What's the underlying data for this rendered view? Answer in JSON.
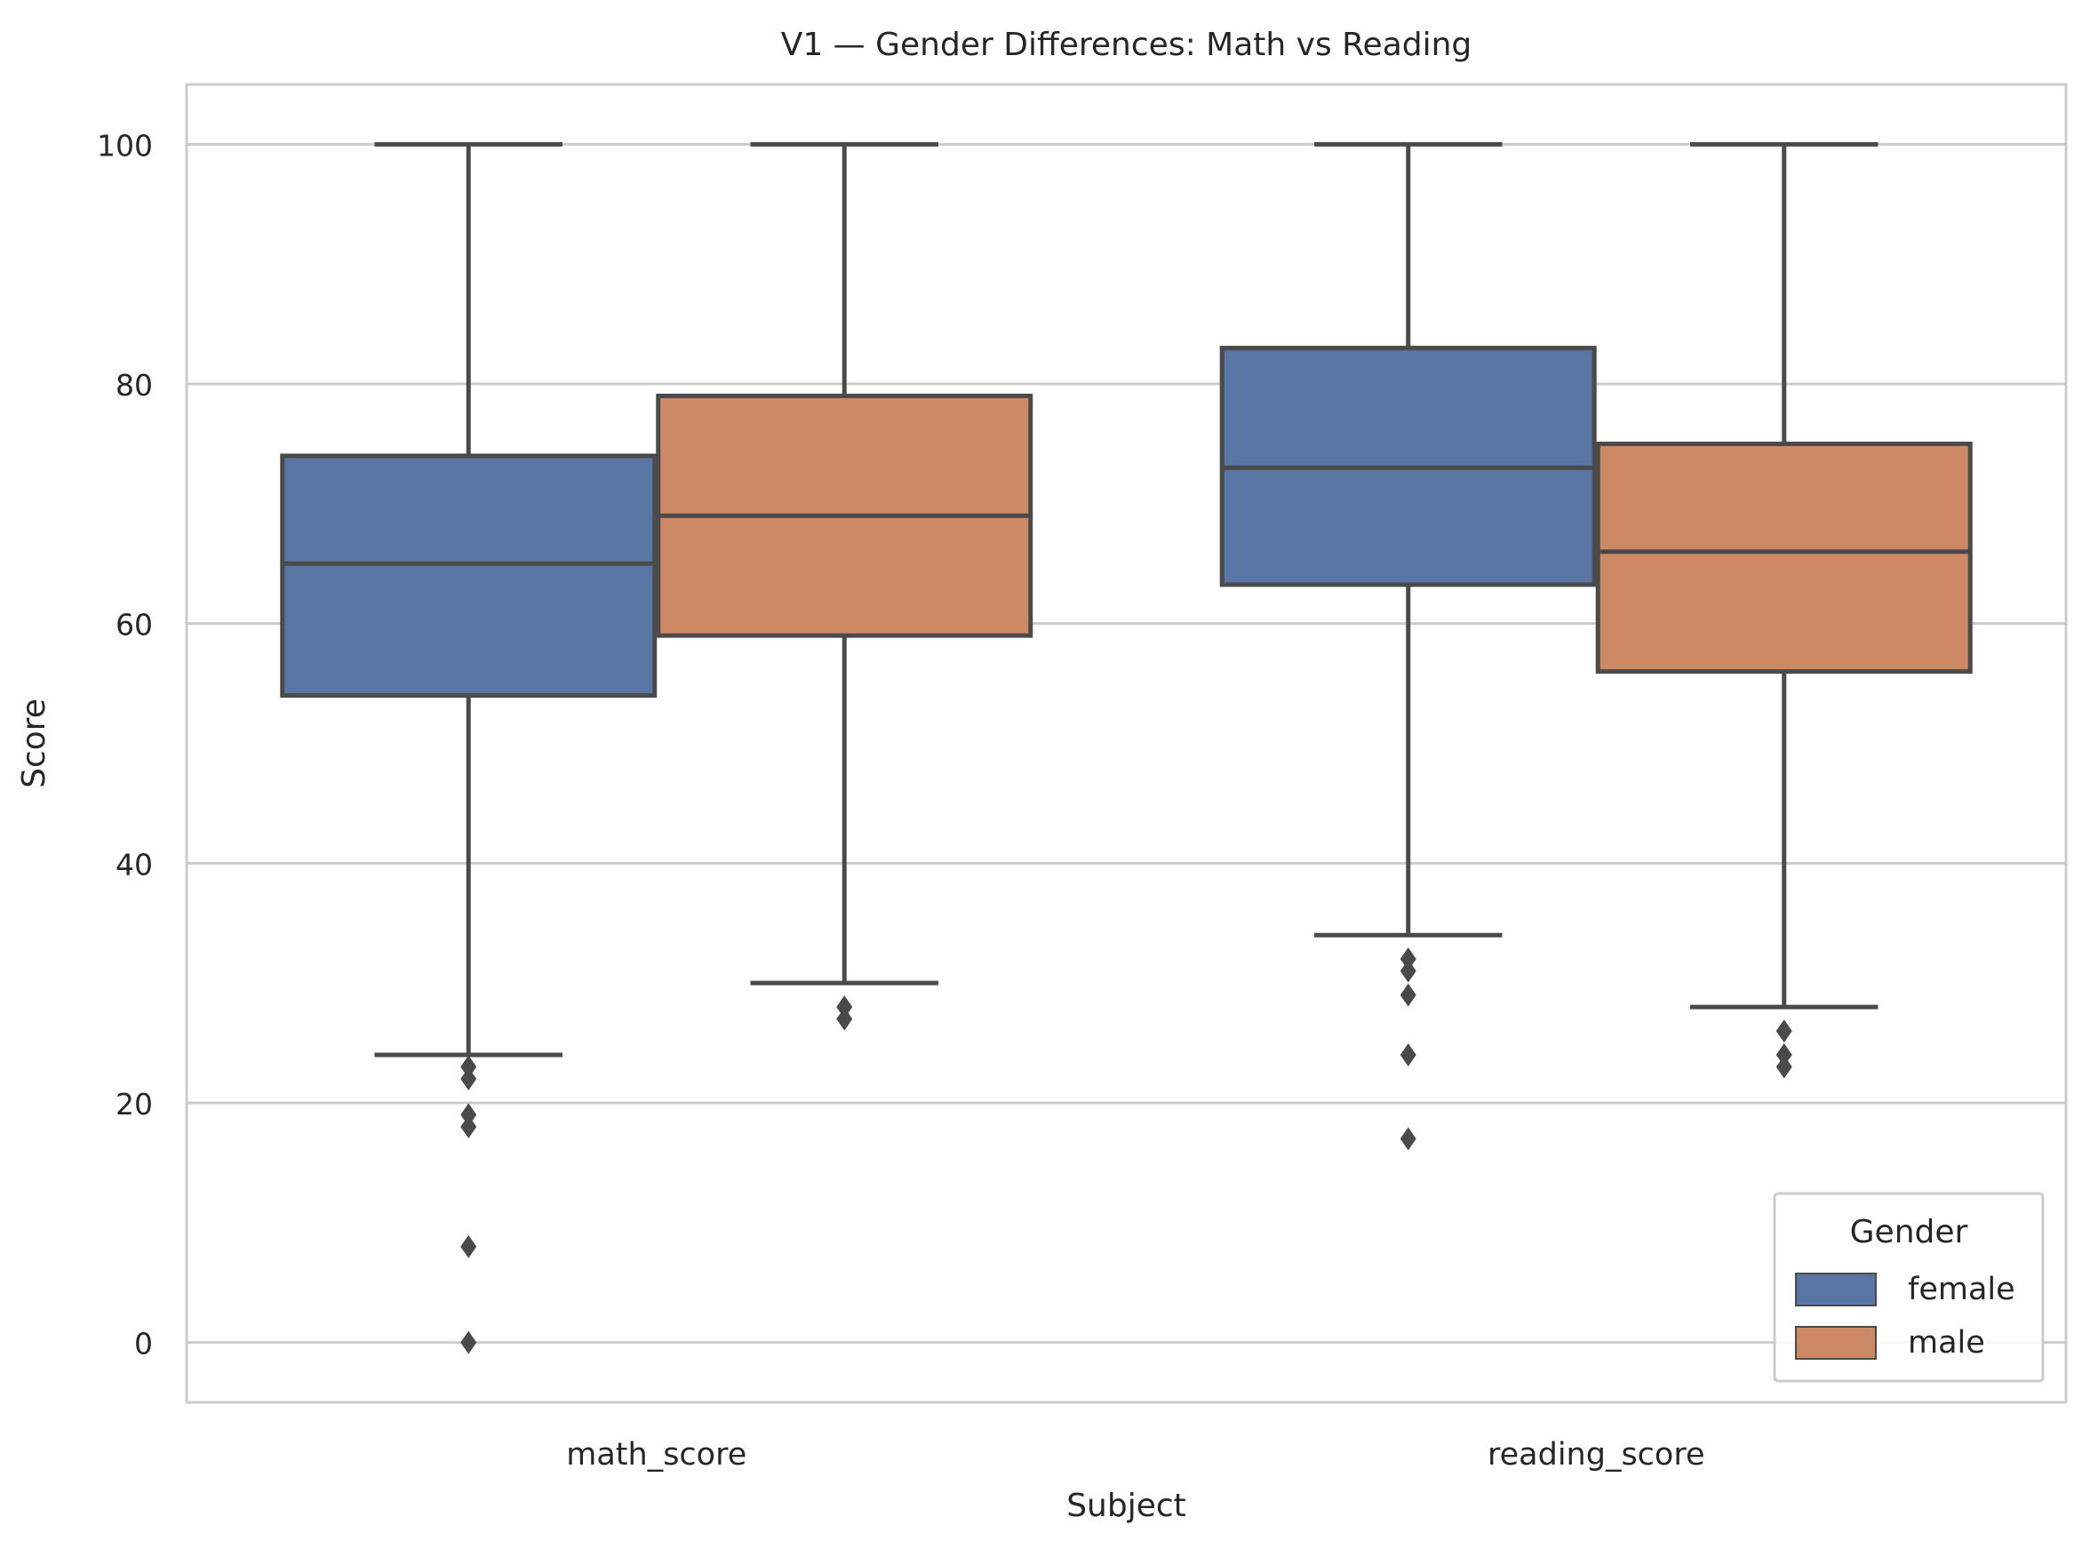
{
  "chart_data": {
    "type": "box",
    "title": "V1 — Gender Differences: Math vs Reading",
    "xlabel": "Subject",
    "ylabel": "Score",
    "ylim": [
      -5,
      105
    ],
    "yticks": [
      0,
      20,
      40,
      60,
      80,
      100
    ],
    "grid": "horizontal",
    "categories": [
      "math_score",
      "reading_score"
    ],
    "legend": {
      "title": "Gender",
      "position": "lower-right"
    },
    "series": [
      {
        "name": "female",
        "color": "#5875a4",
        "boxes": [
          {
            "whisker_low": 24,
            "q1": 54,
            "median": 65,
            "q3": 74,
            "whisker_high": 100,
            "outliers": [
              23,
              22,
              19,
              18,
              8,
              0
            ]
          },
          {
            "whisker_low": 34,
            "q1": 63.25,
            "median": 73,
            "q3": 83,
            "whisker_high": 100,
            "outliers": [
              32,
              31,
              29,
              24,
              17
            ]
          }
        ]
      },
      {
        "name": "male",
        "color": "#cc8963",
        "boxes": [
          {
            "whisker_low": 30,
            "q1": 59,
            "median": 69,
            "q3": 79,
            "whisker_high": 100,
            "outliers": [
              28,
              27
            ]
          },
          {
            "whisker_low": 28,
            "q1": 56,
            "median": 66,
            "q3": 75,
            "whisker_high": 100,
            "outliers": [
              26,
              24,
              23
            ]
          }
        ]
      }
    ]
  }
}
